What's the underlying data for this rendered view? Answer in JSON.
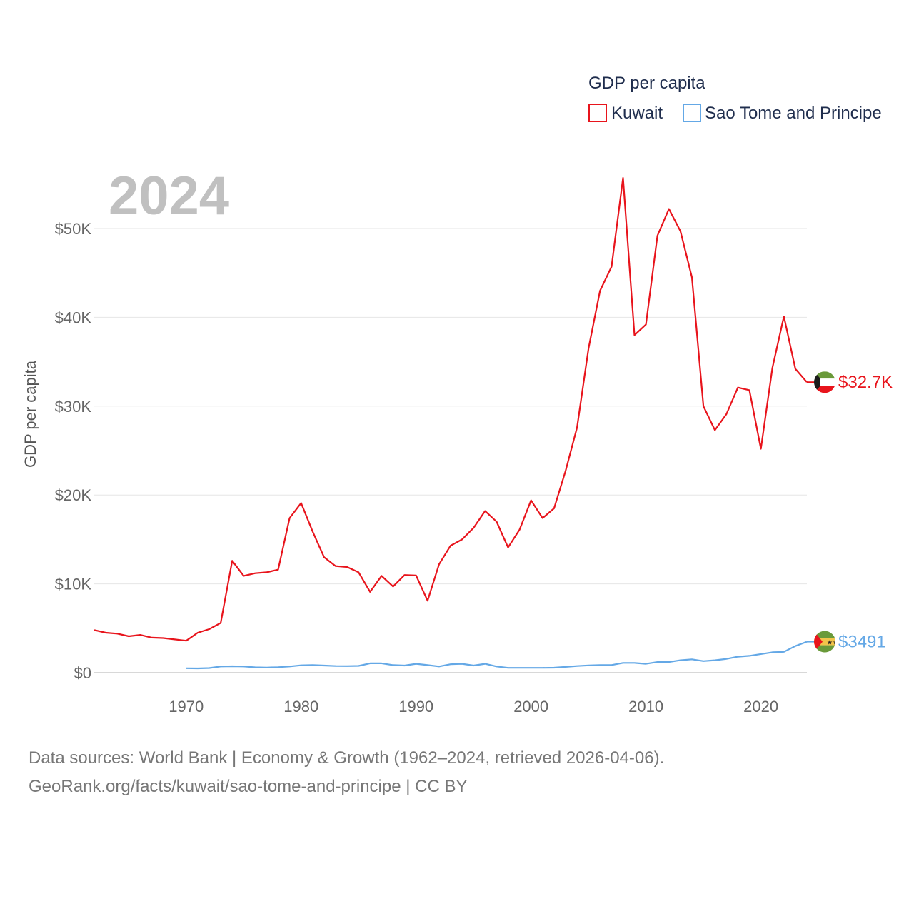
{
  "chart_data": {
    "type": "line",
    "legend_title": "GDP per capita",
    "year_label": "2024",
    "ylabel": "GDP per capita",
    "xlabel": "",
    "xlim": [
      1962,
      2024
    ],
    "ylim": [
      0,
      55000
    ],
    "y_ticks": [
      {
        "value": 0,
        "label": "$0"
      },
      {
        "value": 10000,
        "label": "$10K"
      },
      {
        "value": 20000,
        "label": "$20K"
      },
      {
        "value": 30000,
        "label": "$30K"
      },
      {
        "value": 40000,
        "label": "$40K"
      },
      {
        "value": 50000,
        "label": "$50K"
      }
    ],
    "x_ticks": [
      1970,
      1980,
      1990,
      2000,
      2010,
      2020
    ],
    "legend_position": "top-right",
    "series": [
      {
        "name": "Kuwait",
        "color": "#e8141c",
        "end_label": "$32.7K",
        "flag": "kuwait-flag-icon",
        "x": [
          1962,
          1963,
          1964,
          1965,
          1966,
          1967,
          1968,
          1969,
          1970,
          1971,
          1972,
          1973,
          1974,
          1975,
          1976,
          1977,
          1978,
          1979,
          1980,
          1981,
          1982,
          1983,
          1984,
          1985,
          1986,
          1987,
          1988,
          1989,
          1990,
          1991,
          1992,
          1993,
          1994,
          1995,
          1996,
          1997,
          1998,
          1999,
          2000,
          2001,
          2002,
          2003,
          2004,
          2005,
          2006,
          2007,
          2008,
          2009,
          2010,
          2011,
          2012,
          2013,
          2014,
          2015,
          2016,
          2017,
          2018,
          2019,
          2020,
          2021,
          2022,
          2023,
          2024
        ],
        "values": [
          4800,
          4500,
          4400,
          4100,
          4250,
          3950,
          3900,
          3750,
          3600,
          4500,
          4900,
          5600,
          12600,
          10900,
          11200,
          11300,
          11600,
          17400,
          19100,
          15900,
          13000,
          12000,
          11900,
          11300,
          9100,
          10900,
          9700,
          11000,
          10950,
          8100,
          12200,
          14300,
          15000,
          16300,
          18200,
          17000,
          14100,
          16100,
          19400,
          17400,
          18500,
          22700,
          27600,
          36500,
          43000,
          45700,
          55700,
          38000,
          39200,
          49200,
          52200,
          49700,
          44500,
          30000,
          27300,
          29100,
          32100,
          31800,
          25200,
          34300,
          40100,
          34200,
          32700
        ]
      },
      {
        "name": "Sao Tome and Principe",
        "color": "#64a8e6",
        "end_label": "$3491",
        "flag": "sao-tome-flag-icon",
        "x": [
          1970,
          1971,
          1972,
          1973,
          1974,
          1975,
          1976,
          1977,
          1978,
          1979,
          1980,
          1981,
          1982,
          1983,
          1984,
          1985,
          1986,
          1987,
          1988,
          1989,
          1990,
          1991,
          1992,
          1993,
          1994,
          1995,
          1996,
          1997,
          1998,
          1999,
          2000,
          2001,
          2002,
          2003,
          2004,
          2005,
          2006,
          2007,
          2008,
          2009,
          2010,
          2011,
          2012,
          2013,
          2014,
          2015,
          2016,
          2017,
          2018,
          2019,
          2020,
          2021,
          2022,
          2023,
          2024
        ],
        "values": [
          500,
          480,
          520,
          700,
          720,
          700,
          600,
          580,
          620,
          700,
          830,
          850,
          800,
          750,
          740,
          760,
          1050,
          1050,
          850,
          800,
          1000,
          850,
          700,
          950,
          1000,
          800,
          1000,
          700,
          550,
          550,
          550,
          550,
          560,
          650,
          750,
          820,
          850,
          860,
          1100,
          1100,
          1000,
          1200,
          1200,
          1400,
          1500,
          1300,
          1400,
          1550,
          1800,
          1900,
          2100,
          2300,
          2350,
          3000,
          3491
        ]
      }
    ]
  },
  "source": {
    "line1": "Data sources: World Bank | Economy & Growth (1962–2024, retrieved 2026-04-06).",
    "line2": "GeoRank.org/facts/kuwait/sao-tome-and-principe | CC BY"
  }
}
